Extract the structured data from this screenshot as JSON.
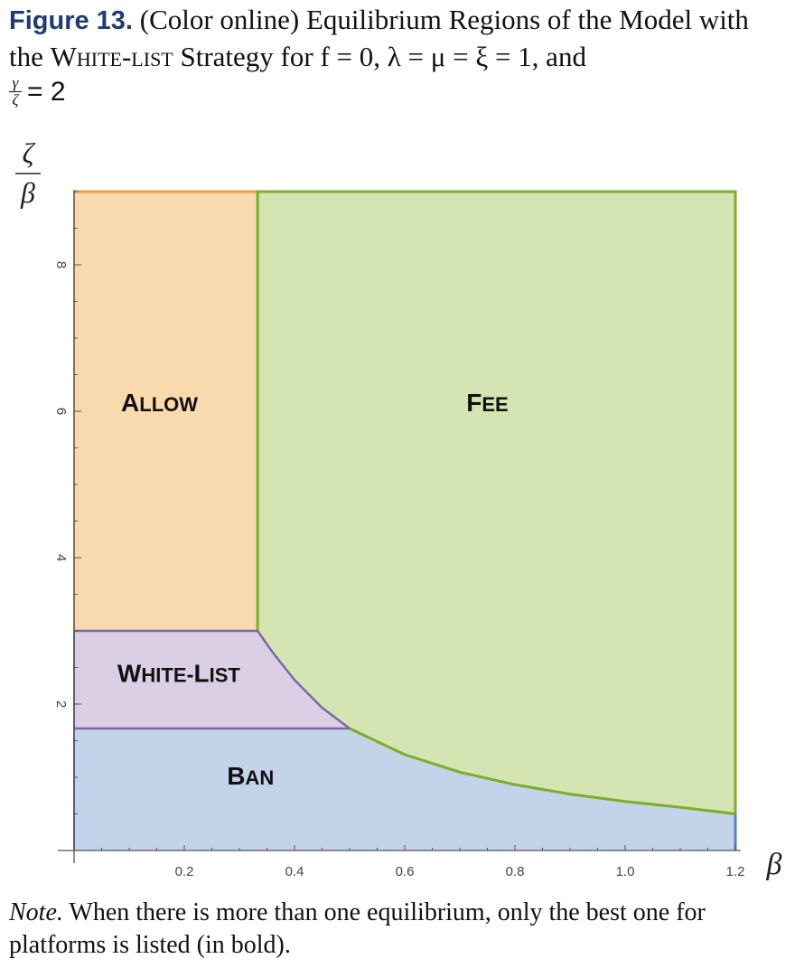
{
  "caption": {
    "figure_label": "Figure 13.",
    "text_before_strategy": "(Color online) Equilibrium Regions of the Model with the ",
    "strategy_name": "White-list",
    "text_after_strategy": " Strategy for f = 0, λ = μ = ξ = 1, and",
    "ratio_numerator": "γ",
    "ratio_denominator": "ζ",
    "ratio_value": "= 2"
  },
  "note": {
    "label": "Note.",
    "text": "When there is more than one equilibrium, only the best one for platforms is listed (in bold)."
  },
  "colors": {
    "allow_fill": "#f9d9ae",
    "allow_edge": "#f0a040",
    "fee_fill": "#d4e4b3",
    "fee_edge": "#7cad2b",
    "whitelist_fill": "#dacfe4",
    "whitelist_edge": "#7b68a6",
    "ban_fill": "#c3d3e9",
    "ban_edge": "#5b7fc4"
  },
  "chart_data": {
    "type": "area",
    "title": "",
    "xlabel": "β",
    "ylabel_numerator": "ζ",
    "ylabel_denominator": "β",
    "xlim": [
      0,
      1.2
    ],
    "ylim": [
      0,
      9
    ],
    "xticks": [
      0.2,
      0.4,
      0.6,
      0.8,
      1.0,
      1.2
    ],
    "xtick_labels": [
      "0.2",
      "0.4",
      "0.6",
      "0.8",
      "1.0",
      "1.2"
    ],
    "yticks": [
      2,
      4,
      6,
      8
    ],
    "ytick_labels": [
      "2",
      "4",
      "6",
      "8"
    ],
    "boundaries": {
      "allow_fee_x": 0.333,
      "whitelist_top_y": 3,
      "whitelist_bottom_y": 1.667,
      "curve_points": [
        [
          0.333,
          3.0
        ],
        [
          0.36,
          2.71
        ],
        [
          0.4,
          2.33
        ],
        [
          0.45,
          1.95
        ],
        [
          0.5,
          1.667
        ],
        [
          0.6,
          1.31
        ],
        [
          0.7,
          1.07
        ],
        [
          0.8,
          0.9
        ],
        [
          0.9,
          0.77
        ],
        [
          1.0,
          0.67
        ],
        [
          1.1,
          0.59
        ],
        [
          1.2,
          0.5
        ]
      ]
    },
    "regions": [
      {
        "name": "Allow",
        "display": "Allow",
        "label_at": [
          0.155,
          6.0
        ]
      },
      {
        "name": "Fee",
        "display": "Fee",
        "label_at": [
          0.75,
          6.0
        ]
      },
      {
        "name": "White-list",
        "display": "White-list",
        "label_at": [
          0.19,
          2.3
        ]
      },
      {
        "name": "Ban",
        "display": "Ban",
        "label_at": [
          0.32,
          0.9
        ]
      }
    ]
  }
}
